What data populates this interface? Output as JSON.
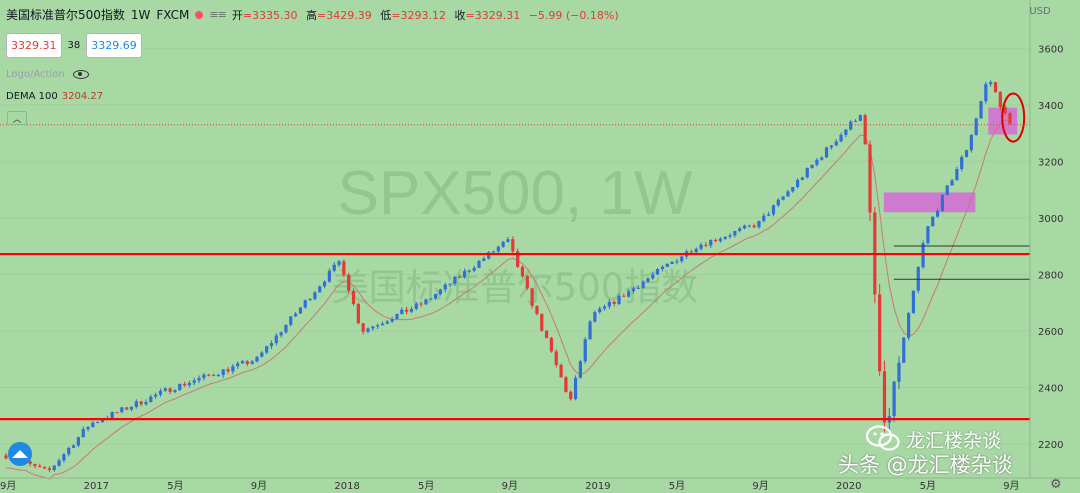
{
  "header": {
    "symbol_name": "美国标准普尔500指数",
    "timeframe": "1W",
    "source": "FXCM",
    "ohlc": {
      "open_label": "开",
      "open": "=3335.30",
      "high_label": "高",
      "high": "=3429.39",
      "low_label": "低",
      "low": "=3293.12",
      "close_label": "收",
      "close": "=3329.31",
      "change": "−5.99 (−0.18%)"
    }
  },
  "trade": {
    "sell": "3329.31",
    "spread": "38",
    "buy": "3329.69"
  },
  "watermark": {
    "line1": "SPX500, 1W",
    "line2": "美国标准普尔500指数"
  },
  "logo_label": "Logo/Action",
  "indicator": {
    "name": "DEMA 100",
    "value": "3204.27"
  },
  "collapse_icon": "chevron-up-icon",
  "currency": "USD",
  "branding": {
    "wechat": "龙汇楼杂谈",
    "toutiao": "头条 @龙汇楼杂谈"
  },
  "colors": {
    "background": "#a8d8a4",
    "up": "#2f6fd6",
    "down": "#e53935",
    "hline": "#ff0000",
    "dema": "#c77b74",
    "zone": "#d56ad6"
  },
  "chart_data": {
    "type": "candlestick",
    "timeframe": "weekly",
    "ylim": [
      2080,
      3700
    ],
    "y_ticks": [
      2200,
      2400,
      2600,
      2800,
      3000,
      3200,
      3400,
      3600
    ],
    "x_ticks": [
      "9月",
      "2017",
      "5月",
      "9月",
      "2018",
      "5月",
      "9月",
      "2019",
      "5月",
      "9月",
      "2020",
      "5月",
      "9月"
    ],
    "anchors": [
      [
        "2016-09",
        2160
      ],
      [
        "2016-11",
        2100
      ],
      [
        "2017-01",
        2270
      ],
      [
        "2017-05",
        2400
      ],
      [
        "2017-09",
        2500
      ],
      [
        "2018-01",
        2850
      ],
      [
        "2018-02",
        2600
      ],
      [
        "2018-05",
        2700
      ],
      [
        "2018-09",
        2920
      ],
      [
        "2018-12",
        2350
      ],
      [
        "2019-01",
        2650
      ],
      [
        "2019-05",
        2850
      ],
      [
        "2019-06",
        2900
      ],
      [
        "2019-09",
        2980
      ],
      [
        "2020-02",
        3380
      ],
      [
        "2020-03",
        2220
      ],
      [
        "2020-05",
        2950
      ],
      [
        "2020-07",
        3250
      ],
      [
        "2020-08",
        3500
      ],
      [
        "2020-09",
        3330
      ]
    ],
    "dema_100": {
      "name": "DEMA 100",
      "last": 3204.27
    },
    "horizontal_lines": [
      {
        "price": 2872.17,
        "label": "2872.17",
        "color": "#ff0000"
      },
      {
        "price": 2288.22,
        "label": "2288.22",
        "color": "#ff0000"
      }
    ],
    "price_levels": [
      {
        "price": 2900.41,
        "label": "2900.41"
      },
      {
        "price": 2782.99,
        "label": "2782.99"
      }
    ],
    "current_price": {
      "price": 3329.31,
      "label": "3329.31"
    },
    "zones": [
      {
        "from": "2020-03",
        "to": "2020-07",
        "low": 3020,
        "high": 3090
      },
      {
        "from": "2020-08",
        "to": "2020-09",
        "low": 3295,
        "high": 3390
      }
    ],
    "annotation": {
      "type": "ellipse",
      "at": "2020-09",
      "low": 3270,
      "high": 3440
    }
  }
}
